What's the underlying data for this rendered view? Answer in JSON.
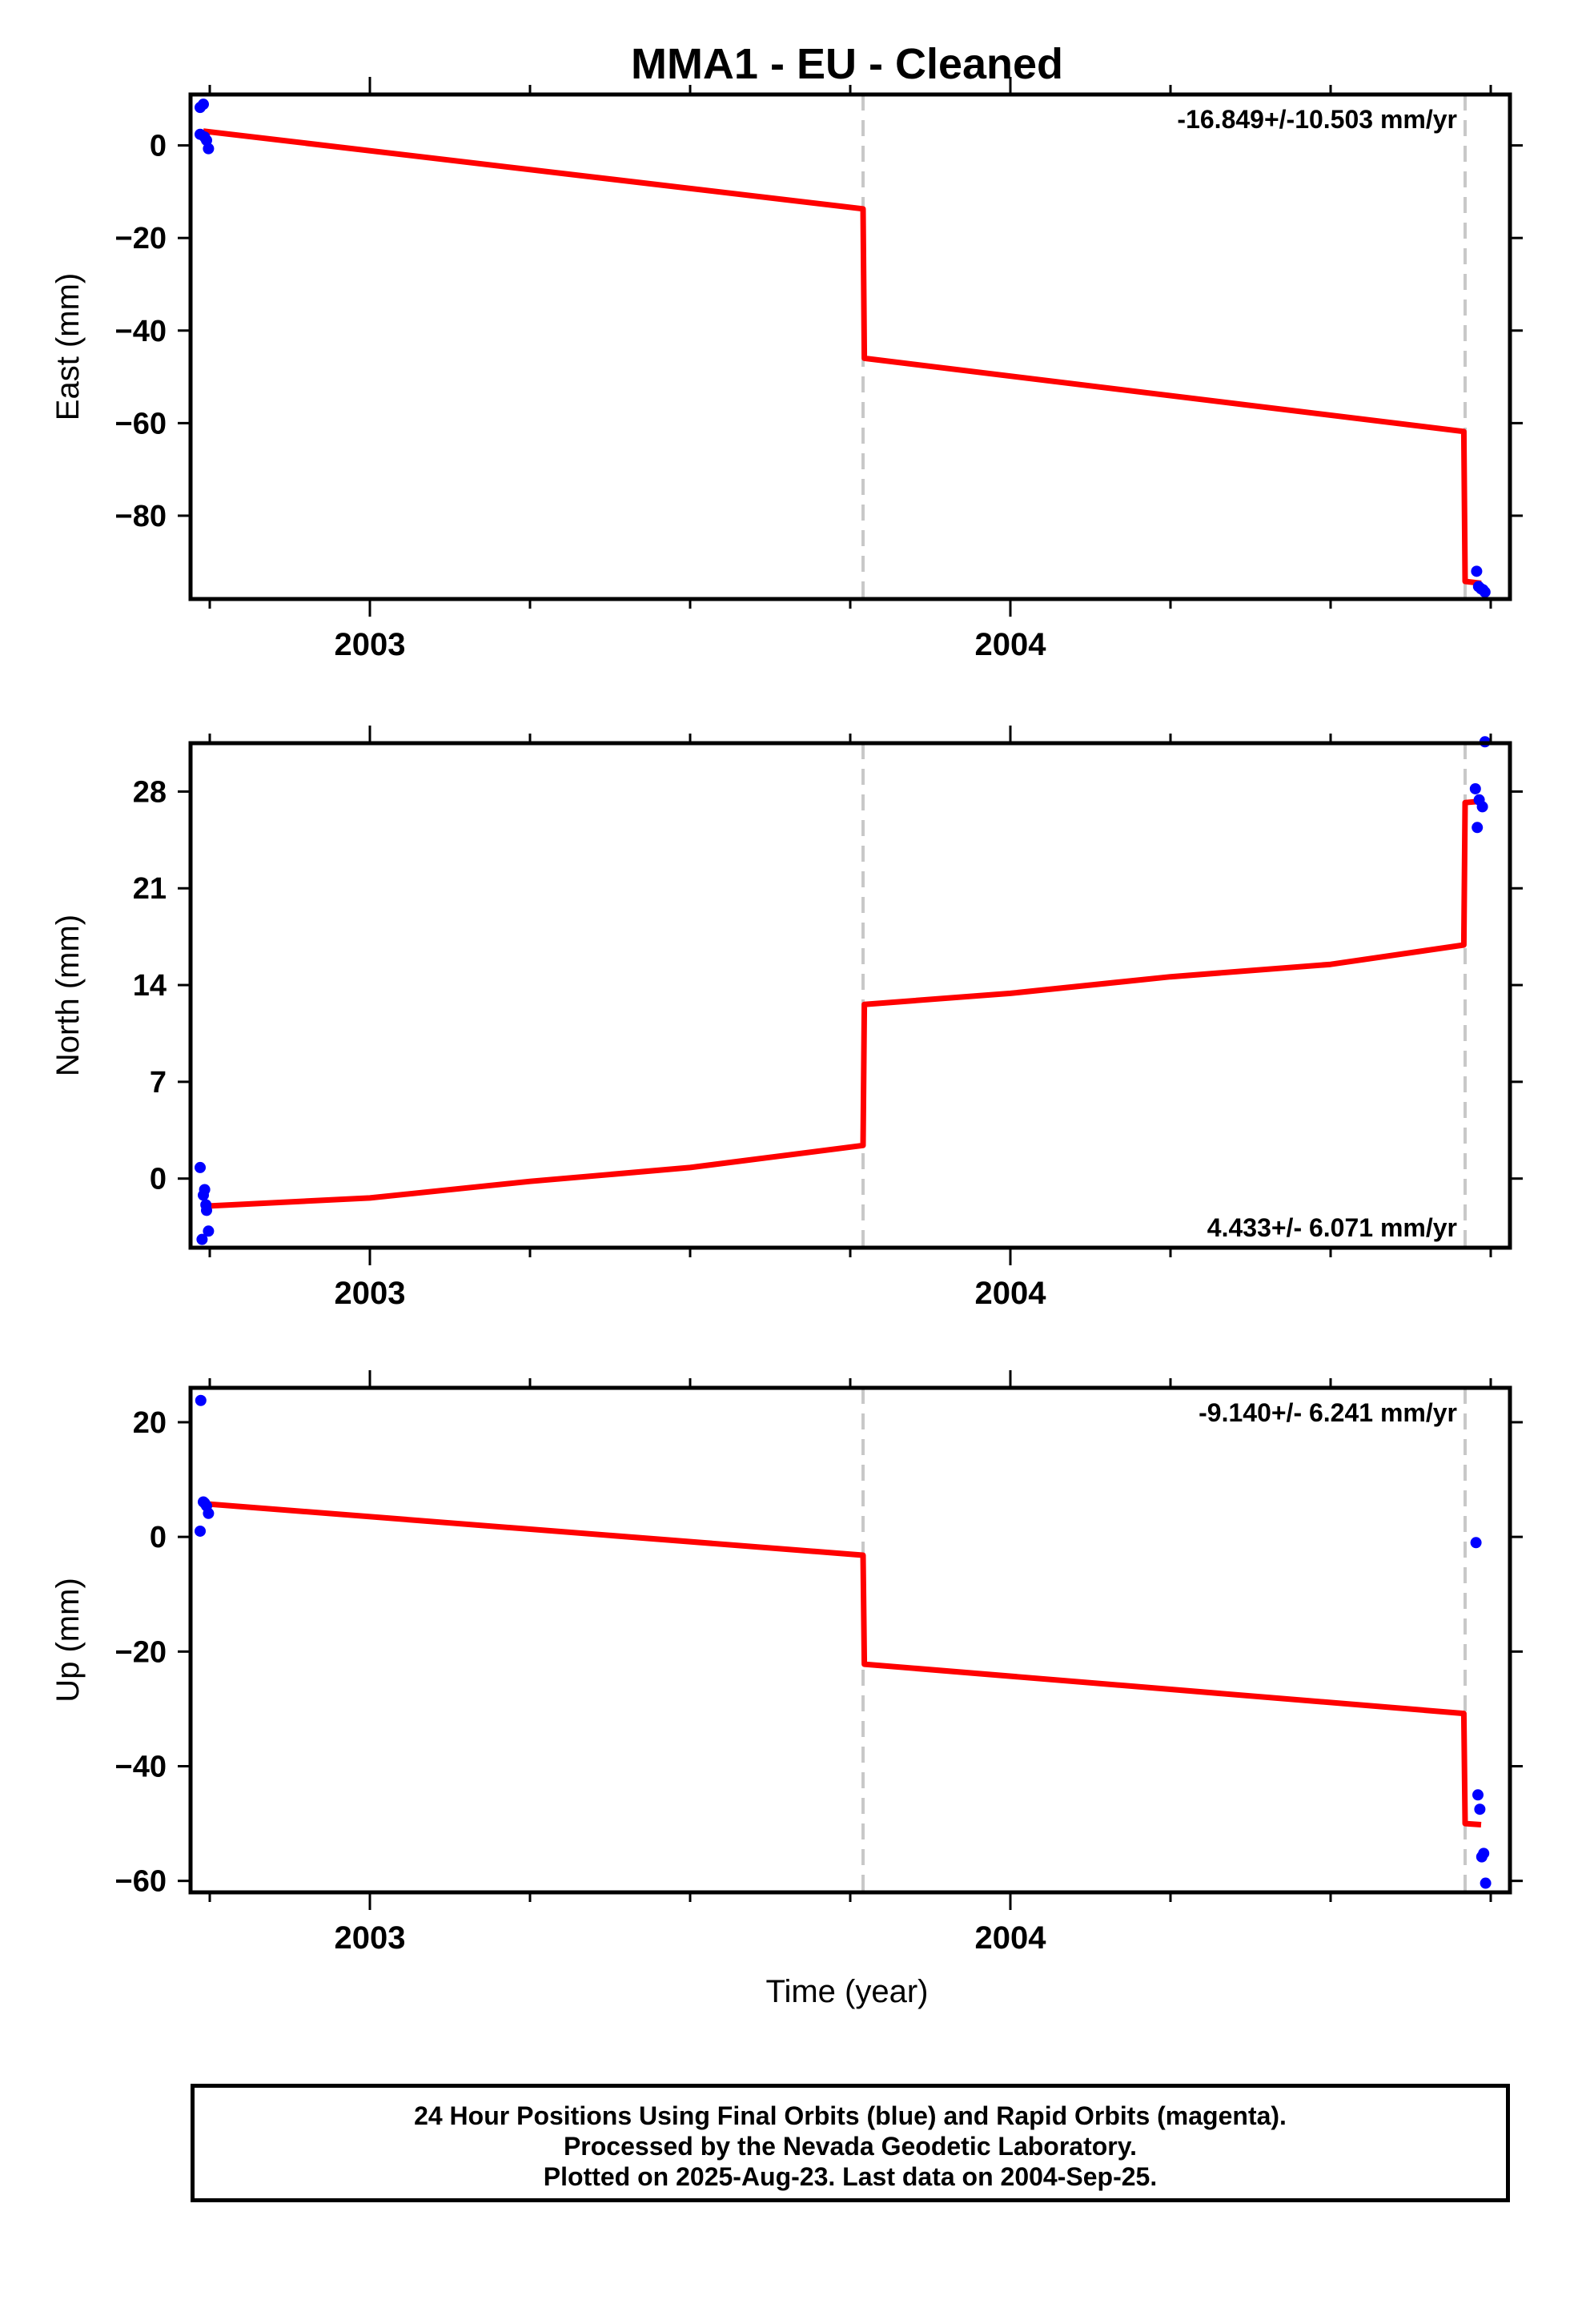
{
  "title": "MMA1  - EU - Cleaned",
  "x_axis_label": "Time (year)",
  "footer": {
    "line1": "24 Hour Positions Using Final Orbits (blue) and Rapid Orbits (magenta).",
    "line2": "Processed by the Nevada Geodetic Laboratory.",
    "line3": "Plotted on 2025-Aug-23. Last data on 2004-Sep-25."
  },
  "colors": {
    "data_points": "#0000ff",
    "model_line": "#ff0000",
    "break_line": "#c8c8c8"
  },
  "chart_data": [
    {
      "type": "scatter",
      "name": "east",
      "ylabel": "East (mm)",
      "rate_text": "-16.849+/-10.503 mm/yr",
      "rate_position": "top-right",
      "xlim": [
        2002.72,
        2004.78
      ],
      "ylim": [
        -98,
        11
      ],
      "yticks": [
        0,
        -20,
        -40,
        -60,
        -80
      ],
      "xticks_major": [
        2003,
        2004
      ],
      "xticks_minor": [
        2002.75,
        2003.25,
        2003.5,
        2003.75,
        2004.25,
        2004.5,
        2004.75
      ],
      "breaks": [
        2003.77,
        2004.71
      ],
      "points": {
        "x": [
          2002.735,
          2002.74,
          2002.735,
          2002.742,
          2002.745,
          2002.748,
          2004.728,
          2004.731,
          2004.735,
          2004.738,
          2004.741
        ],
        "y": [
          8.2,
          8.9,
          2.4,
          1.8,
          1.1,
          -0.7,
          -92.0,
          -95.3,
          -95.8,
          -96.0,
          -96.5
        ]
      },
      "model": {
        "x": [
          2002.74,
          2003.77,
          2003.772,
          2004.708,
          2004.71,
          2004.735
        ],
        "y": [
          3.1,
          -13.7,
          -46.0,
          -61.8,
          -94.2,
          -94.6
        ]
      }
    },
    {
      "type": "scatter",
      "name": "north",
      "ylabel": "North (mm)",
      "rate_text": "4.433+/- 6.071 mm/yr",
      "rate_position": "bottom-right",
      "xlim": [
        2002.72,
        2004.78
      ],
      "ylim": [
        -5,
        31.5
      ],
      "yticks": [
        0,
        7,
        14,
        21,
        28
      ],
      "xticks_major": [
        2003,
        2004
      ],
      "xticks_minor": [
        2002.75,
        2003.25,
        2003.5,
        2003.75,
        2004.25,
        2004.5,
        2004.75
      ],
      "breaks": [
        2003.77,
        2004.71
      ],
      "points": {
        "x": [
          2002.735,
          2002.74,
          2002.742,
          2002.745,
          2002.748,
          2002.738,
          2002.744,
          2004.726,
          2004.729,
          2004.732,
          2004.737,
          2004.741
        ],
        "y": [
          0.8,
          -1.2,
          -0.8,
          -2.3,
          -3.8,
          -4.4,
          -1.9,
          28.2,
          25.4,
          27.4,
          26.9,
          31.6
        ]
      },
      "model": {
        "x": [
          2002.74,
          2003.0,
          2003.25,
          2003.5,
          2003.77,
          2003.772,
          2004.0,
          2004.25,
          2004.5,
          2004.708,
          2004.71,
          2004.735
        ],
        "y": [
          -2.0,
          -1.4,
          -0.2,
          0.8,
          2.4,
          12.6,
          13.4,
          14.6,
          15.5,
          16.9,
          27.2,
          27.3
        ]
      }
    },
    {
      "type": "scatter",
      "name": "up",
      "ylabel": "Up (mm)",
      "rate_text": "-9.140+/- 6.241 mm/yr",
      "rate_position": "top-right",
      "xlim": [
        2002.72,
        2004.78
      ],
      "ylim": [
        -62,
        26
      ],
      "yticks": [
        20,
        0,
        -20,
        -40,
        -60
      ],
      "xticks_major": [
        2003,
        2004
      ],
      "xticks_minor": [
        2002.75,
        2003.25,
        2003.5,
        2003.75,
        2004.25,
        2004.5,
        2004.75
      ],
      "breaks": [
        2003.77,
        2004.71
      ],
      "points": {
        "x": [
          2002.736,
          2002.74,
          2002.742,
          2002.745,
          2002.748,
          2002.735,
          2004.727,
          2004.73,
          2004.733,
          2004.736,
          2004.739,
          2004.742
        ],
        "y": [
          23.8,
          6.1,
          5.9,
          5.4,
          4.1,
          1.0,
          -1.0,
          -45.0,
          -47.5,
          -55.8,
          -55.2,
          -60.4
        ]
      },
      "model": {
        "x": [
          2002.74,
          2003.77,
          2003.772,
          2004.708,
          2004.71,
          2004.735
        ],
        "y": [
          5.8,
          -3.2,
          -22.2,
          -30.8,
          -50.0,
          -50.2
        ]
      }
    }
  ],
  "panel_x_labels": [
    "2003",
    "2004"
  ]
}
